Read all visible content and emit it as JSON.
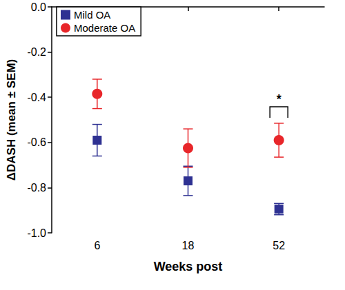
{
  "chart_data": {
    "type": "scatter",
    "x_label": "Weeks post",
    "y_label": "ΔDASH (mean ± SEM)",
    "categories": [
      "6",
      "18",
      "52"
    ],
    "series": [
      {
        "name": "Mild OA",
        "color": "#2e3192",
        "marker": "square",
        "values": [
          -0.59,
          -0.77,
          -0.895
        ],
        "sem": [
          0.07,
          0.065,
          0.025
        ]
      },
      {
        "name": "Moderate OA",
        "color": "#e8262a",
        "marker": "circle",
        "values": [
          -0.385,
          -0.625,
          -0.59
        ],
        "sem": [
          0.065,
          0.085,
          0.075
        ]
      }
    ],
    "ylim": [
      -1.0,
      0.0
    ],
    "yticks": [
      {
        "value": -1.0,
        "label": "-1.0"
      },
      -0.8,
      -0.6,
      -0.4,
      -0.2,
      {
        "value": 0.0,
        "label": "0.0"
      }
    ],
    "annotations": [
      {
        "text": "*",
        "x": "52"
      }
    ],
    "legend": "upper left",
    "grid": false
  }
}
